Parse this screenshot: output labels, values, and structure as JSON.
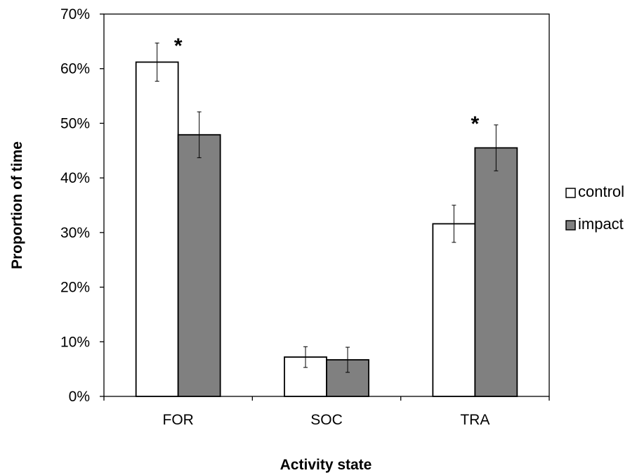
{
  "chart_data": {
    "type": "bar",
    "title": "",
    "xlabel": "Activity state",
    "ylabel": "Proportion of time",
    "categories": [
      "FOR",
      "SOC",
      "TRA"
    ],
    "ylim": [
      0,
      70
    ],
    "yticks": [
      0,
      10,
      20,
      30,
      40,
      50,
      60,
      70
    ],
    "ytick_labels": [
      "0%",
      "10%",
      "20%",
      "30%",
      "40%",
      "50%",
      "60%",
      "70%"
    ],
    "series": [
      {
        "name": "control",
        "color": "#ffffff",
        "values": [
          61.2,
          7.2,
          31.6
        ],
        "errors": [
          3.5,
          1.9,
          3.4
        ]
      },
      {
        "name": "impact",
        "color": "#808080",
        "values": [
          47.9,
          6.7,
          45.5
        ],
        "errors": [
          4.2,
          2.3,
          4.2
        ]
      }
    ],
    "annotations": [
      {
        "text": "*",
        "category": "FOR",
        "y": 65.5
      },
      {
        "text": "*",
        "category": "TRA",
        "y": 51.2
      }
    ],
    "legend_position": "right",
    "grid": false
  }
}
